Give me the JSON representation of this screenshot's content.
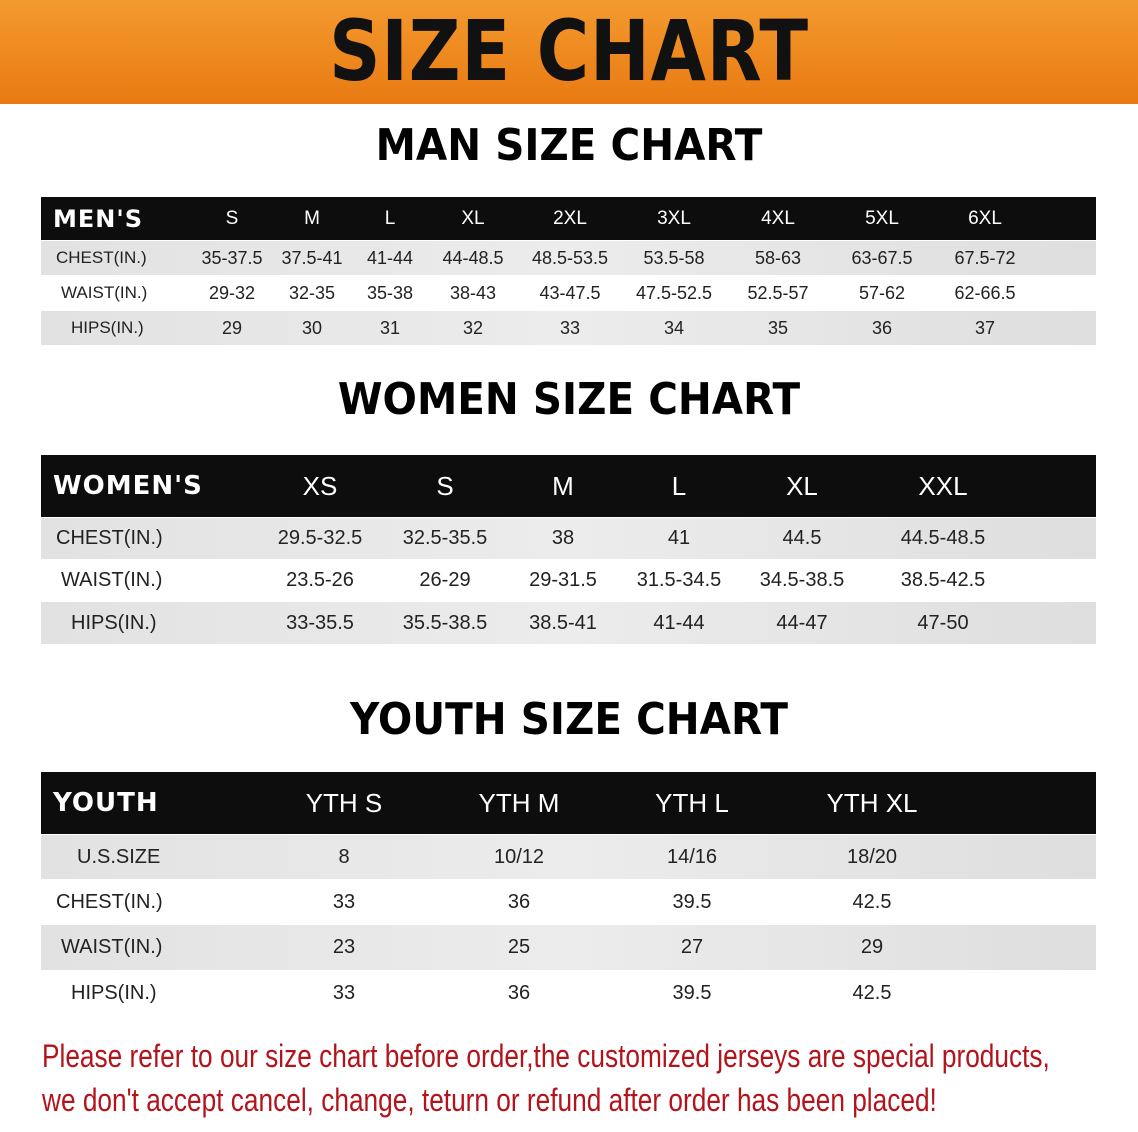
{
  "banner_title": "SIZE CHART",
  "men": {
    "title": "MAN SIZE CHART",
    "header": "MEN'S",
    "sizes": [
      "S",
      "M",
      "L",
      "XL",
      "2XL",
      "3XL",
      "4XL",
      "5XL",
      "6XL"
    ],
    "rows": [
      {
        "label": "CHEST(IN.)",
        "values": [
          "35-37.5",
          "37.5-41",
          "41-44",
          "44-48.5",
          "48.5-53.5",
          "53.5-58",
          "58-63",
          "63-67.5",
          "67.5-72"
        ]
      },
      {
        "label": "WAIST(IN.)",
        "values": [
          "29-32",
          "32-35",
          "35-38",
          "38-43",
          "43-47.5",
          "47.5-52.5",
          "52.5-57",
          "57-62",
          "62-66.5"
        ]
      },
      {
        "label": "HIPS(IN.)",
        "values": [
          "29",
          "30",
          "31",
          "32",
          "33",
          "34",
          "35",
          "36",
          "37"
        ]
      }
    ]
  },
  "women": {
    "title": "WOMEN SIZE CHART",
    "header": "WOMEN'S",
    "sizes": [
      "XS",
      "S",
      "M",
      "L",
      "XL",
      "XXL"
    ],
    "rows": [
      {
        "label": "CHEST(IN.)",
        "values": [
          "29.5-32.5",
          "32.5-35.5",
          "38",
          "41",
          "44.5",
          "44.5-48.5"
        ]
      },
      {
        "label": "WAIST(IN.)",
        "values": [
          "23.5-26",
          "26-29",
          "29-31.5",
          "31.5-34.5",
          "34.5-38.5",
          "38.5-42.5"
        ]
      },
      {
        "label": "HIPS(IN.)",
        "values": [
          "33-35.5",
          "35.5-38.5",
          "38.5-41",
          "41-44",
          "44-47",
          "47-50"
        ]
      }
    ]
  },
  "youth": {
    "title": "YOUTH SIZE CHART",
    "header": "YOUTH",
    "sizes": [
      "YTH S",
      "YTH M",
      "YTH L",
      "YTH XL"
    ],
    "rows": [
      {
        "label": "U.S.SIZE",
        "values": [
          "8",
          "10/12",
          "14/16",
          "18/20"
        ]
      },
      {
        "label": "CHEST(IN.)",
        "values": [
          "33",
          "36",
          "39.5",
          "42.5"
        ]
      },
      {
        "label": "WAIST(IN.)",
        "values": [
          "23",
          "25",
          "27",
          "29"
        ]
      },
      {
        "label": "HIPS(IN.)",
        "values": [
          "33",
          "36",
          "39.5",
          "42.5"
        ]
      }
    ]
  },
  "note": {
    "line1": "Please refer to our size chart before order,the customized jerseys are special products,",
    "line2": "we don't accept cancel, change, teturn or refund after order has been placed!"
  },
  "colors": {
    "banner": "#ee8a1f",
    "header_row": "#0d0d0d",
    "note_text": "#b3141c",
    "row_shade": "#e2e2e2"
  }
}
